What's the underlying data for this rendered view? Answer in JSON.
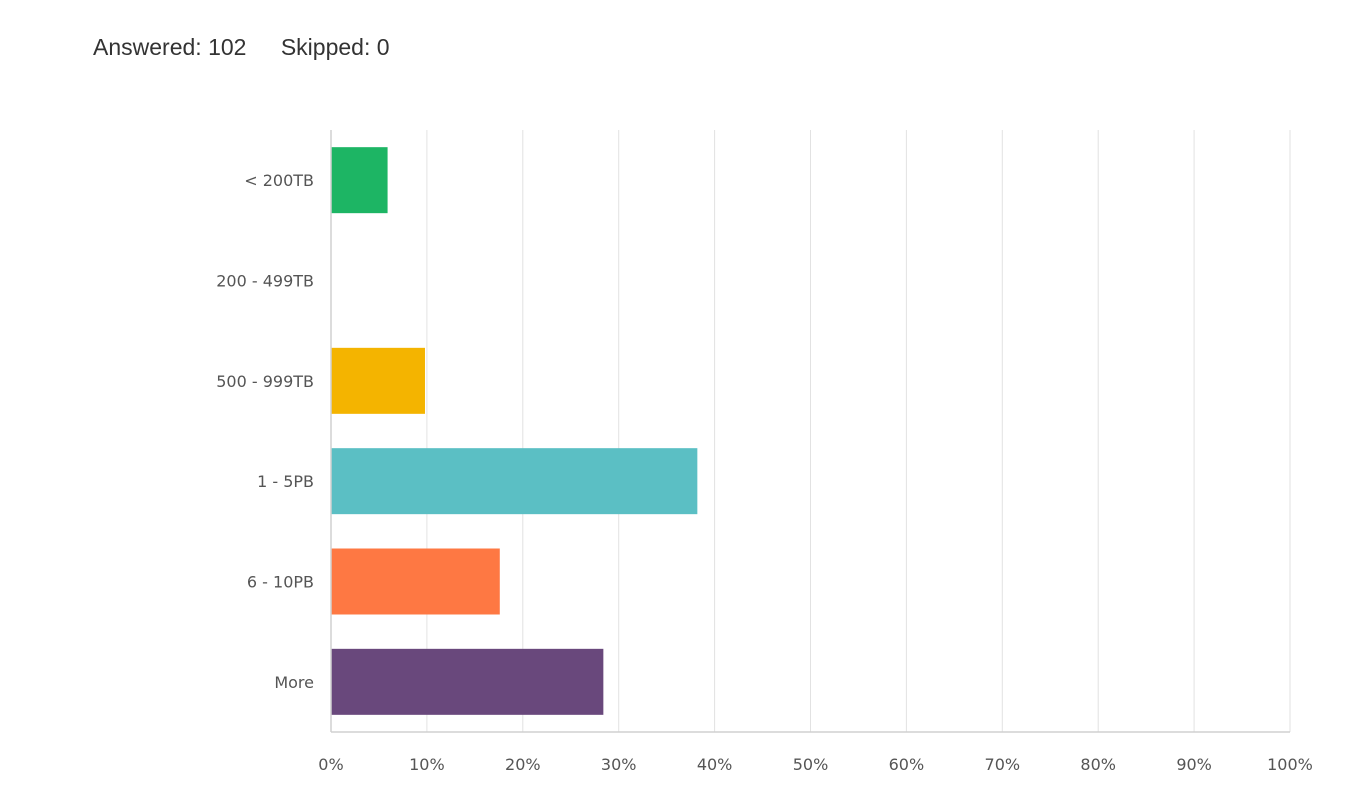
{
  "summary": {
    "answered_label": "Answered:",
    "answered_value": "102",
    "skipped_label": "Skipped:",
    "skipped_value": "0"
  },
  "chart_data": {
    "type": "bar",
    "orientation": "horizontal",
    "title": "",
    "xlabel": "",
    "ylabel": "",
    "categories": [
      "< 200TB",
      "200 - 499TB",
      "500 - 999TB",
      "1 - 5PB",
      "6 - 10PB",
      "More"
    ],
    "values": [
      5.9,
      0,
      9.8,
      38.2,
      17.6,
      28.4
    ],
    "unit": "%",
    "xlim": [
      0,
      100
    ],
    "xticks": [
      "0%",
      "10%",
      "20%",
      "30%",
      "40%",
      "50%",
      "60%",
      "70%",
      "80%",
      "90%",
      "100%"
    ],
    "grid": "vertical",
    "legend": "none",
    "colors": [
      "#1db564",
      "#f4b400",
      "#f4b400",
      "#5bbfc4",
      "#fe7843",
      "#69487c"
    ]
  }
}
